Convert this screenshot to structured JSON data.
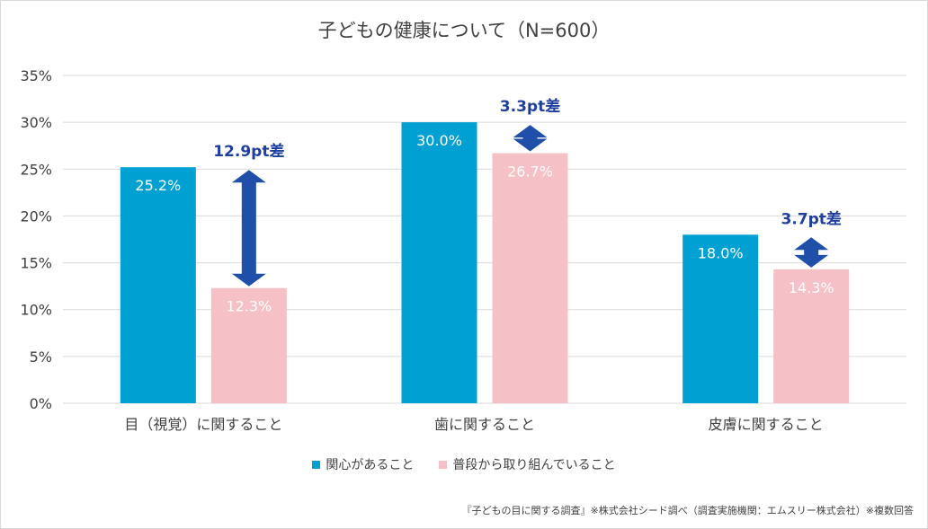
{
  "chart_data": {
    "type": "bar",
    "title": "子どもの健康について（N=600）",
    "categories": [
      "目（視覚）に関すること",
      "歯に関すること",
      "皮膚に関すること"
    ],
    "series": [
      {
        "name": "関心があること",
        "values": [
          25.2,
          30.0,
          18.0
        ],
        "labels": [
          "25.2%",
          "30.0%",
          "18.0%"
        ],
        "color": "#00a0d2"
      },
      {
        "name": "普段から取り組んでいること",
        "values": [
          12.3,
          26.7,
          14.3
        ],
        "labels": [
          "12.3%",
          "26.7%",
          "14.3%"
        ],
        "color": "#f5c1c6"
      }
    ],
    "annotations": [
      "12.9pt差",
      "3.3pt差",
      "3.7pt差"
    ],
    "ylim": [
      0,
      35
    ],
    "yticks": [
      0,
      5,
      10,
      15,
      20,
      25,
      30,
      35
    ],
    "ytick_labels": [
      "0%",
      "5%",
      "10%",
      "15%",
      "20%",
      "25%",
      "30%",
      "35%"
    ],
    "grid": true,
    "legend_position": "bottom",
    "xlabel": "",
    "ylabel": ""
  },
  "colors": {
    "arrow": "#1f4fa8",
    "annotation_text": "#1f3f9e",
    "grid": "#d9d9d9",
    "axis_text": "#404040"
  },
  "source_note": "『子どもの目に関する調査』※株式会社シード調べ（調査実施機関：エムスリー株式会社）※複数回答"
}
